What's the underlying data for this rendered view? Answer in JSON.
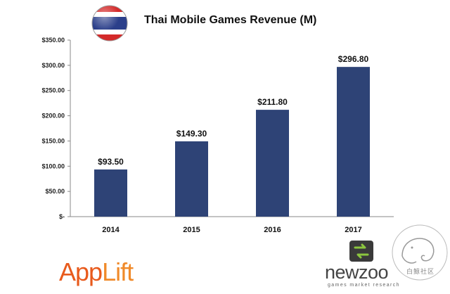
{
  "chart_data": {
    "type": "bar",
    "title": "Thai Mobile Games Revenue (M)",
    "categories": [
      "2014",
      "2015",
      "2016",
      "2017"
    ],
    "values": [
      93.5,
      149.3,
      211.8,
      296.8
    ],
    "data_labels": [
      "$93.50",
      "$149.30",
      "$211.80",
      "$296.80"
    ],
    "ylim": [
      0,
      350
    ],
    "yticks": [
      0,
      50,
      100,
      150,
      200,
      250,
      300,
      350
    ],
    "ytick_labels": [
      "$-",
      "$50.00",
      "$100.00",
      "$150.00",
      "$200.00",
      "$250.00",
      "$300.00",
      "$350.00"
    ],
    "xlabel": "",
    "ylabel": "",
    "grid": false,
    "bar_color": "#2e4376"
  },
  "branding": {
    "applift_part1": "App",
    "applift_part2": "Lift",
    "newzoo": "newzoo",
    "newzoo_tagline": "games market research",
    "watermark_text": "白鲸社区"
  },
  "icons": [
    "thailand-flag-icon",
    "newzoo-logo-icon",
    "whale-watermark-icon"
  ]
}
